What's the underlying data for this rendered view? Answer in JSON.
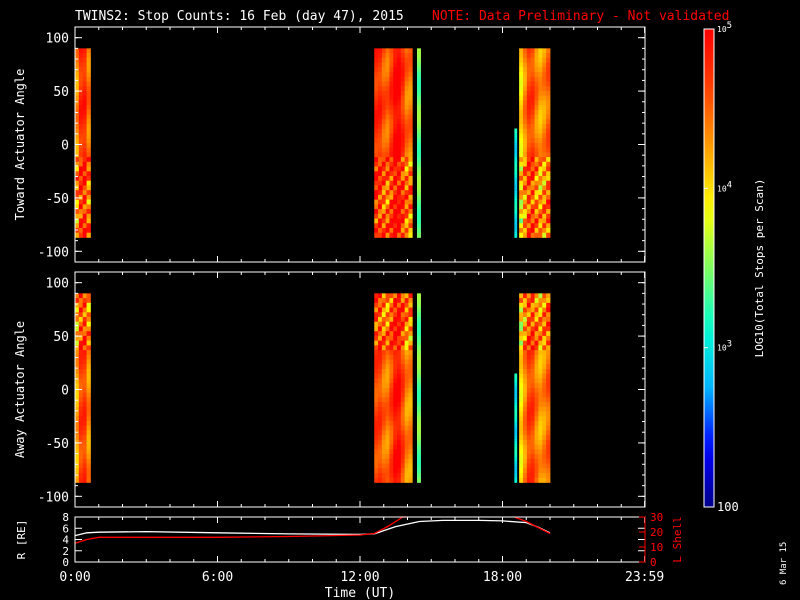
{
  "chart_data": {
    "title": "TWINS2: Stop Counts: 16 Feb (day  47), 2015",
    "note": "NOTE: Data Preliminary - Not validated",
    "date_stamp": "6 Mar 15",
    "colorbar": {
      "label": "LOG10(Total Stops per Scan)",
      "scale": "log",
      "range": [
        100,
        100000
      ],
      "ticks": [
        {
          "value": 100000,
          "label": "10^5"
        },
        {
          "value": 10000,
          "label": "10^4"
        },
        {
          "value": 1000,
          "label": "10^3"
        },
        {
          "value": 100,
          "label": "100"
        }
      ],
      "colors": [
        "#00008b",
        "#0000ff",
        "#00b4ff",
        "#00ffd0",
        "#7fff60",
        "#ffff00",
        "#ffa000",
        "#ff4000",
        "#ff0000"
      ]
    },
    "panels": [
      {
        "name": "toward",
        "type": "heatmap",
        "ylabel": "Toward Actuator Angle",
        "ylim": [
          -110,
          110
        ],
        "yticks": [
          -100,
          -50,
          0,
          50,
          100
        ],
        "xlim": [
          0,
          24
        ],
        "blocks": [
          {
            "x": [
              0.0,
              0.65
            ],
            "y": [
              -87,
              90
            ],
            "base_log": 4.3
          },
          {
            "x": [
              12.6,
              14.2
            ],
            "y": [
              -87,
              90
            ],
            "base_log": 4.5
          },
          {
            "x": [
              14.4,
              14.55
            ],
            "y": [
              -87,
              90
            ],
            "base_log": 3.3
          },
          {
            "x": [
              18.5,
              18.6
            ],
            "y": [
              -87,
              15
            ],
            "base_log": 3.2
          },
          {
            "x": [
              18.7,
              20.0
            ],
            "y": [
              -87,
              90
            ],
            "base_log": 4.2
          }
        ]
      },
      {
        "name": "away",
        "type": "heatmap",
        "ylabel": "Away Actuator Angle",
        "ylim": [
          -110,
          110
        ],
        "yticks": [
          -100,
          -50,
          0,
          50,
          100
        ],
        "xlim": [
          0,
          24
        ],
        "blocks": [
          {
            "x": [
              0.0,
              0.65
            ],
            "y": [
              -87,
              90
            ],
            "base_log": 4.2
          },
          {
            "x": [
              12.6,
              14.2
            ],
            "y": [
              -87,
              90
            ],
            "base_log": 4.4
          },
          {
            "x": [
              14.4,
              14.55
            ],
            "y": [
              -87,
              90
            ],
            "base_log": 3.3
          },
          {
            "x": [
              18.5,
              18.6
            ],
            "y": [
              -87,
              15
            ],
            "base_log": 3.2
          },
          {
            "x": [
              18.7,
              20.0
            ],
            "y": [
              -87,
              90
            ],
            "base_log": 4.2
          }
        ]
      },
      {
        "name": "orbit",
        "type": "line",
        "ylabel": "R [RE]",
        "ylim": [
          0,
          8
        ],
        "yticks": [
          0,
          2,
          4,
          6,
          8
        ],
        "y2label": "L Shell",
        "y2lim": [
          0,
          30
        ],
        "y2ticks": [
          0,
          10,
          20,
          30
        ],
        "xlim": [
          0,
          24
        ],
        "series": [
          {
            "name": "R [RE]",
            "axis": "left",
            "color": "#ffffff",
            "x": [
              0.0,
              0.5,
              1.0,
              3.0,
              6.0,
              9.0,
              12.0,
              12.6,
              13.5,
              14.5,
              15.5,
              17.0,
              18.0,
              19.0,
              19.5,
              20.0
            ],
            "y": [
              4.7,
              5.2,
              5.3,
              5.4,
              5.2,
              5.0,
              4.9,
              5.0,
              6.3,
              7.2,
              7.4,
              7.4,
              7.3,
              7.0,
              6.2,
              5.2
            ]
          },
          {
            "name": "L Shell",
            "axis": "right",
            "color": "#ff0000",
            "x": [
              0.0,
              0.5,
              1.0,
              3.0,
              6.0,
              9.0,
              12.0,
              12.6,
              13.2,
              13.8,
              14.0
            ],
            "y": [
              12.5,
              15.0,
              16.5,
              16.5,
              16.5,
              17.0,
              18.0,
              19.0,
              24.0,
              30.0,
              32.0
            ]
          },
          {
            "name": "L Shell",
            "axis": "right",
            "color": "#ff0000",
            "x": [
              18.5,
              19.0,
              19.5,
              20.0
            ],
            "y": [
              32.0,
              27.0,
              23.0,
              19.0
            ]
          }
        ],
        "xlabel": "Time (UT)",
        "xticks": [
          {
            "value": 0,
            "label": "0:00"
          },
          {
            "value": 6,
            "label": "6:00"
          },
          {
            "value": 12,
            "label": "12:00"
          },
          {
            "value": 18,
            "label": "18:00"
          },
          {
            "value": 23.983,
            "label": "23:59"
          }
        ]
      }
    ]
  }
}
